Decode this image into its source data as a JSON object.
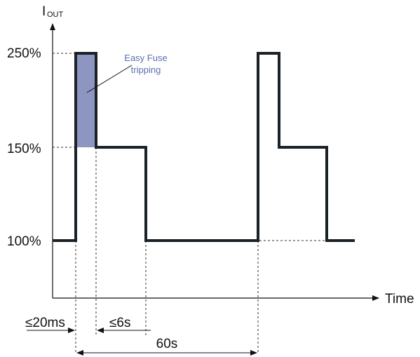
{
  "chart_data": {
    "type": "line",
    "ylabel": {
      "main": "I",
      "subscript": "OUT"
    },
    "xlabel": "Time",
    "yticks": [
      {
        "label": "250%",
        "value": 250
      },
      {
        "label": "150%",
        "value": 150
      },
      {
        "label": "100%",
        "value": 100
      }
    ],
    "series": [
      {
        "points": [
          [
            0,
            100
          ],
          [
            0,
            250
          ],
          [
            20,
            250
          ],
          [
            20,
            150
          ],
          [
            6000,
            150
          ],
          [
            6000,
            100
          ],
          [
            60000,
            100
          ],
          [
            60000,
            250
          ],
          [
            60020,
            250
          ],
          [
            60020,
            150
          ],
          [
            66000,
            150
          ],
          [
            66000,
            100
          ]
        ]
      }
    ],
    "highlight": {
      "label": "Easy Fuse tripping",
      "x_range": [
        0,
        20
      ],
      "y_range": [
        150,
        250
      ],
      "color": "#8c96c0"
    },
    "durations": [
      {
        "label": "≤20ms",
        "from": "start",
        "to": "pulse-end"
      },
      {
        "label": "≤6s",
        "from": "pulse-end",
        "to": "hold-end"
      },
      {
        "label": "60s",
        "from": "start",
        "to": "next-pulse"
      }
    ],
    "annotation": {
      "line1": "Easy Fuse",
      "line2": "tripping",
      "color": "#5b6fb0"
    },
    "line_color": "#1a2228",
    "grid": false
  }
}
